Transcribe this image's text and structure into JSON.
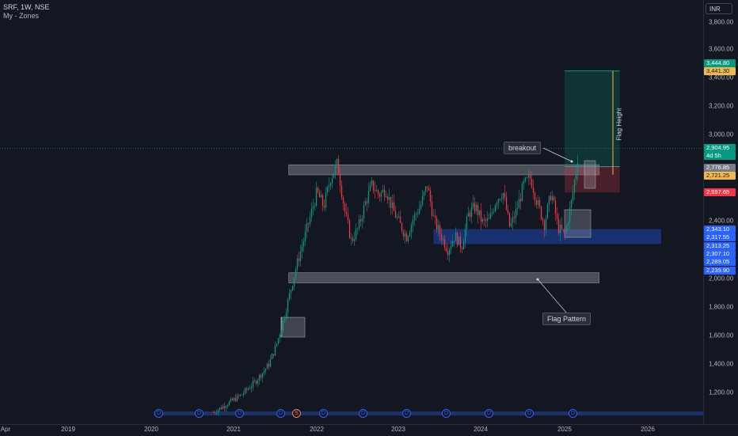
{
  "header": {
    "title": "SRF, 1W, NSE",
    "indicator": "My - Zones"
  },
  "currency": "INR",
  "price_ticks": [
    "3,800.00",
    "3,600.00",
    "3,400.00",
    "3,200.00",
    "3,000.00",
    "2,400.00",
    "2,000.00",
    "1,800.00",
    "1,600.00",
    "1,400.00",
    "1,200.00"
  ],
  "time_ticks": [
    "Apr",
    "2019",
    "2020",
    "2021",
    "2022",
    "2023",
    "2024",
    "2025",
    "2026"
  ],
  "price_labels": [
    {
      "text": "3,444.80",
      "color": "#089981"
    },
    {
      "text": "3,441.30",
      "color": "#f0b94d",
      "dark": true
    },
    {
      "text": "2,904.95",
      "color": "#089981"
    },
    {
      "text": "4d 5h",
      "color": "#089981"
    },
    {
      "text": "2,776.85",
      "color": "#787b86"
    },
    {
      "text": "2,721.25",
      "color": "#f0b94d",
      "dark": true
    },
    {
      "text": "2,597.65",
      "color": "#f23645"
    },
    {
      "text": "2,343.10",
      "color": "#2962ff"
    },
    {
      "text": "2,317.55",
      "color": "#2962ff"
    },
    {
      "text": "2,313.25",
      "color": "#2962ff"
    },
    {
      "text": "2,307.10",
      "color": "#2962ff"
    },
    {
      "text": "2,289.05",
      "color": "#2962ff"
    },
    {
      "text": "2,239.90",
      "color": "#2962ff"
    }
  ],
  "annotations": {
    "breakout": "breakout",
    "flag_pattern": "Flag Pattern",
    "flag_height": "Flag Height"
  },
  "events": [
    {
      "glyph": "D",
      "type": "dividend"
    },
    {
      "glyph": "D",
      "type": "dividend"
    },
    {
      "glyph": "D",
      "type": "dividend"
    },
    {
      "glyph": "D",
      "type": "dividend"
    },
    {
      "glyph": "S",
      "type": "split"
    },
    {
      "glyph": "D",
      "type": "dividend"
    },
    {
      "glyph": "D",
      "type": "dividend"
    },
    {
      "glyph": "D",
      "type": "dividend"
    },
    {
      "glyph": "D",
      "type": "dividend"
    },
    {
      "glyph": "D",
      "type": "dividend"
    },
    {
      "glyph": "D",
      "type": "dividend"
    },
    {
      "glyph": "D",
      "type": "dividend"
    }
  ],
  "chart_data": {
    "type": "candlestick",
    "symbol": "SRF",
    "timeframe": "1W",
    "exchange": "NSE",
    "y_axis_range": [
      1050,
      3950
    ],
    "x_axis_range": [
      "2018-04",
      "2026-03"
    ],
    "last_price": 2904.95,
    "zones": [
      {
        "label": "upper flag boundary",
        "from": 2720,
        "to": 2790,
        "start": "2021-09",
        "end": "2025-06"
      },
      {
        "label": "Flag Pattern",
        "from": 1970,
        "to": 2040,
        "start": "2021-09",
        "end": "2025-06"
      },
      {
        "label": "demand zone",
        "from": 2239.9,
        "to": 2343.1,
        "start": "2023-06",
        "end": "2026-03"
      },
      {
        "label": "target",
        "from": 2776.85,
        "to": 3444.8,
        "start": "2025-01",
        "end": "2025-09"
      },
      {
        "label": "stop",
        "from": 2597.65,
        "to": 2776.85,
        "start": "2025-01",
        "end": "2025-09"
      }
    ],
    "price_series": [
      [
        "2020-10",
        1070
      ],
      [
        "2020-12",
        1130
      ],
      [
        "2021-02",
        1190
      ],
      [
        "2021-04",
        1280
      ],
      [
        "2021-06",
        1400
      ],
      [
        "2021-07",
        1520
      ],
      [
        "2021-08",
        1680
      ],
      [
        "2021-09",
        1880
      ],
      [
        "2021-10",
        2080
      ],
      [
        "2021-11",
        2250
      ],
      [
        "2021-12",
        2420
      ],
      [
        "2022-01",
        2600
      ],
      [
        "2022-02",
        2500
      ],
      [
        "2022-03",
        2700
      ],
      [
        "2022-04",
        2800
      ],
      [
        "2022-05",
        2480
      ],
      [
        "2022-06",
        2260
      ],
      [
        "2022-07",
        2350
      ],
      [
        "2022-08",
        2520
      ],
      [
        "2022-09",
        2650
      ],
      [
        "2022-10",
        2580
      ],
      [
        "2022-11",
        2620
      ],
      [
        "2022-12",
        2480
      ],
      [
        "2023-01",
        2380
      ],
      [
        "2023-02",
        2290
      ],
      [
        "2023-03",
        2420
      ],
      [
        "2023-04",
        2500
      ],
      [
        "2023-05",
        2650
      ],
      [
        "2023-06",
        2400
      ],
      [
        "2023-07",
        2300
      ],
      [
        "2023-08",
        2200
      ],
      [
        "2023-09",
        2300
      ],
      [
        "2023-10",
        2220
      ],
      [
        "2023-11",
        2450
      ],
      [
        "2023-12",
        2500
      ],
      [
        "2024-01",
        2390
      ],
      [
        "2024-02",
        2400
      ],
      [
        "2024-03",
        2550
      ],
      [
        "2024-04",
        2600
      ],
      [
        "2024-05",
        2350
      ],
      [
        "2024-06",
        2480
      ],
      [
        "2024-07",
        2650
      ],
      [
        "2024-08",
        2700
      ],
      [
        "2024-09",
        2520
      ],
      [
        "2024-10",
        2380
      ],
      [
        "2024-11",
        2600
      ],
      [
        "2024-12",
        2350
      ],
      [
        "2025-01",
        2310
      ],
      [
        "2025-02",
        2550
      ],
      [
        "2025-03",
        2904.95
      ]
    ]
  }
}
